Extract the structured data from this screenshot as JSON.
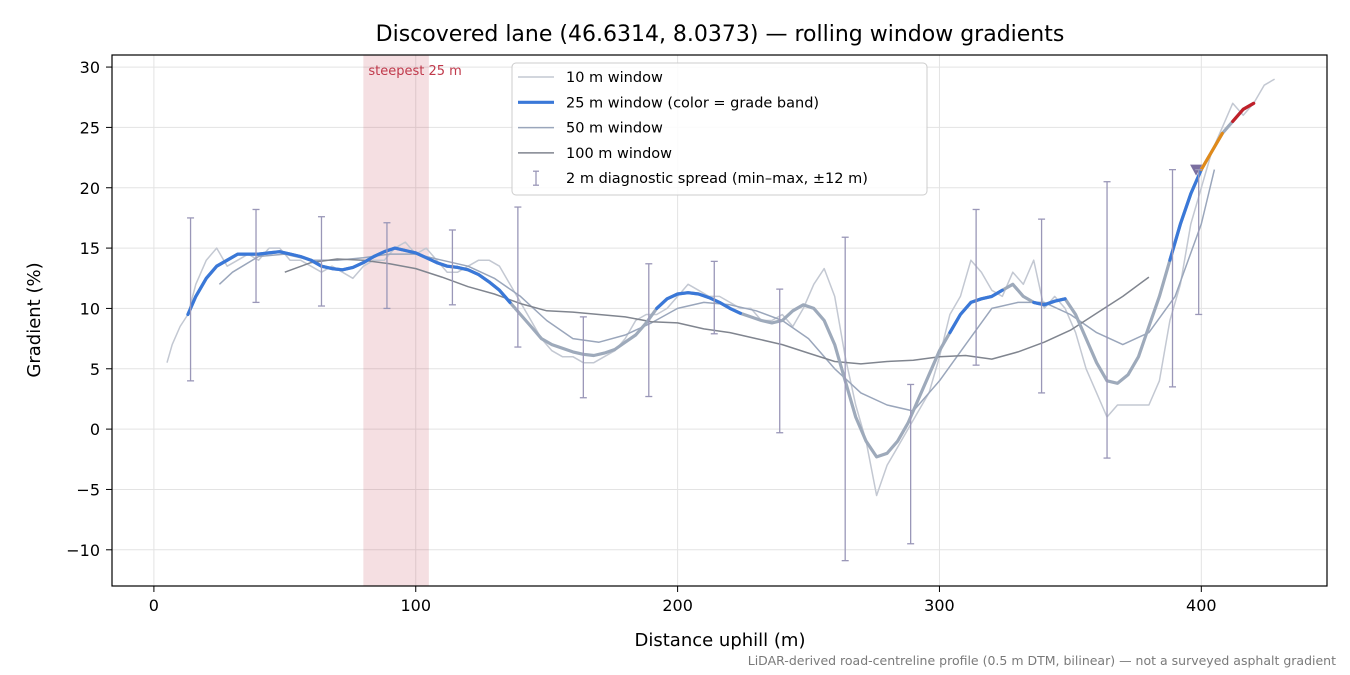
{
  "chart_data": {
    "type": "line",
    "title": "Discovered lane (46.6314, 8.0373) — rolling window gradients",
    "xlabel": "Distance uphill (m)",
    "ylabel": "Gradient (%)",
    "xlim": [
      -16,
      448
    ],
    "ylim": [
      -13,
      31
    ],
    "xticks": [
      0,
      100,
      200,
      300,
      400
    ],
    "yticks": [
      -10,
      -5,
      0,
      5,
      10,
      15,
      20,
      25,
      30
    ],
    "grid": true,
    "legend_position": "top-center",
    "footnote": "LiDAR-derived road-centreline profile (0.5 m DTM, bilinear) — not a surveyed asphalt gradient",
    "highlight": {
      "label": "steepest 25 m",
      "x_start": 80,
      "x_end": 105,
      "color": "#c0394b"
    },
    "summit_marker": {
      "x": 398,
      "y": 21.5,
      "color": "#7b6fa0"
    },
    "colors": {
      "w10": "#c3c8d2",
      "w25": "#3a78d8",
      "w25_faded": "#9eaabb",
      "w50": "#9aa6bb",
      "w100": "#80858f",
      "spread": "#9a97b8",
      "band_orange": "#e08a1a",
      "band_red": "#c0202a"
    },
    "series": [
      {
        "name": "10 m window",
        "x": [
          5,
          7,
          10,
          13,
          16,
          20,
          24,
          28,
          32,
          36,
          40,
          44,
          48,
          52,
          56,
          60,
          64,
          68,
          72,
          76,
          80,
          84,
          88,
          92,
          96,
          100,
          104,
          108,
          112,
          116,
          120,
          124,
          128,
          132,
          136,
          140,
          144,
          148,
          152,
          156,
          160,
          164,
          168,
          172,
          176,
          180,
          184,
          188,
          192,
          196,
          200,
          204,
          208,
          212,
          216,
          220,
          224,
          228,
          232,
          236,
          240,
          244,
          248,
          252,
          256,
          260,
          264,
          268,
          272,
          276,
          280,
          284,
          288,
          292,
          296,
          300,
          304,
          308,
          312,
          316,
          320,
          324,
          328,
          332,
          336,
          340,
          344,
          348,
          352,
          356,
          360,
          364,
          368,
          372,
          376,
          380,
          384,
          388,
          392,
          396,
          400,
          404,
          408,
          412,
          416,
          420,
          424,
          428
        ],
        "y": [
          5.5,
          7,
          8.5,
          9.5,
          12,
          14,
          15,
          13.5,
          14,
          14.5,
          14,
          15,
          15,
          14,
          14,
          13.5,
          13,
          13.5,
          13,
          12.5,
          13.5,
          14,
          14,
          15,
          15.5,
          14.5,
          15,
          14,
          13,
          13,
          13.5,
          14,
          14,
          13.5,
          12,
          10.5,
          9,
          7.5,
          6.5,
          6,
          6,
          5.5,
          5.5,
          6,
          6.5,
          7.5,
          9,
          9.5,
          9.5,
          10,
          11,
          12,
          11.5,
          11,
          11,
          10.5,
          10,
          10,
          9,
          9,
          9.5,
          8.5,
          10,
          12,
          13.3,
          11,
          6,
          2,
          -1,
          -5.5,
          -3,
          -1.5,
          0,
          1.5,
          3,
          6,
          9.5,
          11,
          14,
          13,
          11.5,
          11,
          13,
          12,
          14,
          10,
          11,
          10,
          8,
          5,
          3,
          1,
          2,
          2,
          2,
          2,
          4,
          9,
          12,
          17,
          20,
          23,
          25,
          27,
          26,
          27,
          28.5,
          29
        ]
      },
      {
        "name": "25 m window (color = grade band)",
        "x": [
          13,
          16,
          20,
          24,
          28,
          32,
          36,
          40,
          44,
          48,
          52,
          56,
          60,
          64,
          68,
          72,
          76,
          80,
          84,
          88,
          92,
          96,
          100,
          104,
          108,
          112,
          116,
          120,
          124,
          128,
          132,
          136,
          140,
          144,
          148,
          152,
          156,
          160,
          164,
          168,
          172,
          176,
          180,
          184,
          188,
          192,
          196,
          200,
          204,
          208,
          212,
          216,
          220,
          224,
          228,
          232,
          236,
          240,
          244,
          248,
          252,
          256,
          260,
          264,
          268,
          272,
          276,
          280,
          284,
          288,
          292,
          296,
          300,
          304,
          308,
          312,
          316,
          320,
          324,
          328,
          332,
          336,
          340,
          344,
          348,
          352,
          356,
          360,
          364,
          368,
          372,
          376,
          380,
          384,
          388,
          392,
          396,
          400,
          404,
          408,
          412,
          416,
          420
        ],
        "y": [
          9.5,
          11,
          12.5,
          13.5,
          14,
          14.5,
          14.5,
          14.5,
          14.6,
          14.7,
          14.5,
          14.3,
          14.0,
          13.5,
          13.3,
          13.2,
          13.4,
          13.8,
          14.3,
          14.7,
          15.0,
          14.8,
          14.6,
          14.2,
          13.8,
          13.5,
          13.4,
          13.2,
          12.8,
          12.2,
          11.5,
          10.5,
          9.5,
          8.5,
          7.5,
          7.0,
          6.7,
          6.4,
          6.2,
          6.1,
          6.3,
          6.6,
          7.2,
          7.8,
          8.8,
          10.0,
          10.8,
          11.2,
          11.3,
          11.2,
          10.9,
          10.5,
          10.0,
          9.6,
          9.3,
          9.0,
          8.8,
          9.0,
          9.8,
          10.3,
          10.0,
          9.0,
          7.0,
          4.0,
          1.0,
          -1.0,
          -2.3,
          -2.0,
          -1.0,
          0.5,
          2.5,
          4.5,
          6.5,
          8.0,
          9.5,
          10.5,
          10.8,
          11.0,
          11.5,
          12.0,
          11.0,
          10.5,
          10.3,
          10.6,
          10.8,
          9.5,
          7.5,
          5.5,
          4.0,
          3.8,
          4.5,
          6.0,
          8.5,
          11.0,
          14.0,
          17.0,
          19.5,
          21.5,
          23.0,
          24.5,
          25.5,
          26.5,
          27.0
        ],
        "highlight_x_from": 13,
        "highlight_x_to": 140,
        "grade_bands": [
          {
            "from_x": 13,
            "to_x": 139,
            "color": "#3a78d8"
          },
          {
            "from_x": 191,
            "to_x": 225,
            "color": "#3a78d8"
          },
          {
            "from_x": 301,
            "to_x": 326,
            "color": "#3a78d8"
          },
          {
            "from_x": 334,
            "to_x": 350,
            "color": "#3a78d8"
          },
          {
            "from_x": 385,
            "to_x": 400,
            "color": "#3a78d8"
          },
          {
            "from_x": 400,
            "to_x": 410,
            "color": "#e08a1a"
          },
          {
            "from_x": 410,
            "to_x": 420,
            "color": "#c0202a"
          }
        ]
      },
      {
        "name": "50 m window",
        "x": [
          25,
          30,
          40,
          50,
          60,
          70,
          80,
          90,
          100,
          110,
          120,
          130,
          140,
          150,
          160,
          170,
          180,
          190,
          200,
          210,
          220,
          230,
          240,
          250,
          260,
          270,
          280,
          290,
          300,
          310,
          320,
          330,
          340,
          350,
          360,
          370,
          380,
          390,
          400,
          405
        ],
        "y": [
          12,
          13,
          14.3,
          14.5,
          14,
          14,
          14.2,
          14.5,
          14.5,
          14,
          13.5,
          12.5,
          11,
          9,
          7.5,
          7.2,
          7.8,
          8.8,
          10,
          10.5,
          10.3,
          9.8,
          9,
          7.5,
          5,
          3,
          2,
          1.5,
          4,
          7,
          10,
          10.5,
          10.5,
          9.5,
          8,
          7,
          8,
          11,
          17,
          21.5
        ]
      },
      {
        "name": "100 m window",
        "x": [
          50,
          60,
          70,
          80,
          90,
          100,
          110,
          120,
          130,
          140,
          150,
          160,
          170,
          180,
          190,
          200,
          210,
          220,
          230,
          240,
          250,
          260,
          270,
          280,
          290,
          300,
          310,
          320,
          330,
          340,
          350,
          360,
          370,
          380
        ],
        "y": [
          13,
          13.8,
          14.1,
          14,
          13.7,
          13.3,
          12.6,
          11.8,
          11.2,
          10.4,
          9.8,
          9.7,
          9.5,
          9.3,
          8.9,
          8.8,
          8.3,
          8.0,
          7.5,
          7.0,
          6.3,
          5.6,
          5.4,
          5.6,
          5.7,
          6.0,
          6.1,
          5.8,
          6.4,
          7.2,
          8.2,
          9.6,
          11.0,
          12.6
        ]
      }
    ],
    "error_bars": {
      "name": "2 m diagnostic spread (min–max, ±12 m)",
      "x": [
        14,
        39,
        64,
        89,
        114,
        139,
        164,
        189,
        214,
        239,
        264,
        289,
        314,
        339,
        364,
        389,
        399
      ],
      "low": [
        4,
        10.5,
        10.2,
        10,
        10.3,
        6.8,
        2.6,
        2.7,
        7.9,
        -0.3,
        -10.9,
        -9.5,
        5.3,
        3,
        -2.4,
        3.5,
        9.5
      ],
      "high": [
        17.5,
        18.2,
        17.6,
        17.1,
        16.5,
        18.4,
        9.3,
        13.7,
        13.9,
        11.6,
        15.9,
        3.7,
        18.2,
        17.4,
        20.5,
        21.5,
        21.5
      ]
    }
  }
}
